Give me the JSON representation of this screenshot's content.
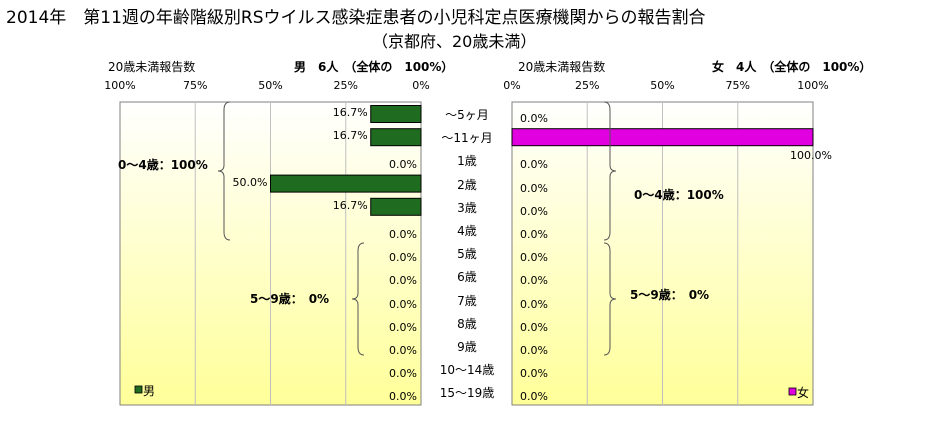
{
  "title": "2014年　第11週の年齢階級別RSウイルス感染症患者の小児科定点医療機関からの報告割合",
  "subtitle": "（京都府、20歳未満）",
  "chart_data": {
    "type": "bar",
    "categories": [
      "～5ヶ月",
      "～11ヶ月",
      "1歳",
      "2歳",
      "3歳",
      "4歳",
      "5歳",
      "6歳",
      "7歳",
      "8歳",
      "9歳",
      "10～14歳",
      "15～19歳"
    ],
    "axis_title": "20歳未満報告数",
    "ticks_male": [
      "100%",
      "75%",
      "50%",
      "25%",
      "0%"
    ],
    "ticks_female": [
      "0%",
      "25%",
      "50%",
      "75%",
      "100%"
    ],
    "xlim": [
      0,
      100
    ],
    "grid": true,
    "series": [
      {
        "name": "男",
        "header": "男　6人　（全体の　100%）",
        "color": "#1f6b1f",
        "direction": "left",
        "values": [
          16.7,
          16.7,
          0,
          50,
          16.7,
          0,
          0,
          0,
          0,
          0,
          0,
          0,
          0
        ],
        "labels": [
          "16.7%",
          "16.7%",
          "0.0%",
          "50.0%",
          "16.7%",
          "0.0%",
          "0.0%",
          "0.0%",
          "0.0%",
          "0.0%",
          "0.0%",
          "0.0%",
          "0.0%"
        ],
        "groups": [
          "0～4歳：100%",
          "5～9歳：　0%"
        ]
      },
      {
        "name": "女",
        "header": "女　4人　（全体の　100%）",
        "color": "#e000e0",
        "direction": "right",
        "values": [
          0,
          100,
          0,
          0,
          0,
          0,
          0,
          0,
          0,
          0,
          0,
          0,
          0
        ],
        "labels": [
          "0.0%",
          "100.0%",
          "0.0%",
          "0.0%",
          "0.0%",
          "0.0%",
          "0.0%",
          "0.0%",
          "0.0%",
          "0.0%",
          "0.0%",
          "0.0%",
          "0.0%"
        ],
        "groups": [
          "0～4歳：100%",
          "5～9歳：　0%"
        ]
      }
    ],
    "legend": "bottom-left"
  }
}
